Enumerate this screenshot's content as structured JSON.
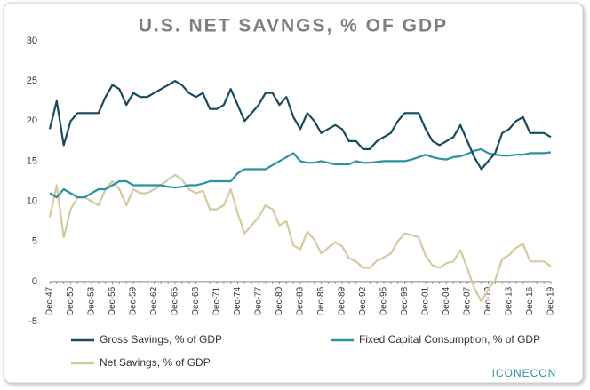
{
  "chart_data": {
    "type": "line",
    "title": "U.S. NET SAVNGS, % OF GDP",
    "categories": [
      "Dec-47",
      null,
      null,
      "Dec-50",
      null,
      null,
      "Dec-53",
      null,
      null,
      "Dec-56",
      null,
      null,
      "Dec-59",
      null,
      null,
      "Dec-62",
      null,
      null,
      "Dec-65",
      null,
      null,
      "Dec-68",
      null,
      null,
      "Dec-71",
      null,
      null,
      "Dec-74",
      null,
      null,
      "Dec-77",
      null,
      null,
      "Dec-80",
      null,
      null,
      "Dec-83",
      null,
      null,
      "Dec-86",
      null,
      null,
      "Dec-89",
      null,
      null,
      "Dec-92",
      null,
      null,
      "Dec-95",
      null,
      null,
      "Dec-98",
      null,
      null,
      "Dec-01",
      null,
      null,
      "Dec-04",
      null,
      null,
      "Dec-07",
      null,
      null,
      "Dec-10",
      null,
      null,
      "Dec-13",
      null,
      null,
      "Dec-16",
      null,
      null,
      "Dec-19"
    ],
    "series": [
      {
        "name": "Gross Savings, % of GDP",
        "color": "#174a5e",
        "values": [
          19,
          22.5,
          17,
          20,
          21,
          21,
          21,
          21,
          23,
          24.5,
          24,
          22,
          23.5,
          23,
          23,
          23.5,
          24,
          24.5,
          25,
          24.5,
          23.5,
          23,
          23.5,
          21.5,
          21.5,
          22,
          24,
          22,
          20,
          21,
          22,
          23.5,
          23.5,
          22,
          23,
          20.5,
          19,
          21,
          20,
          18.5,
          19,
          19.5,
          19,
          17.5,
          17.5,
          16.5,
          16.5,
          17.5,
          18,
          18.5,
          20,
          21,
          21,
          21,
          19,
          17.5,
          17,
          17.5,
          18,
          19.5,
          17.5,
          15.5,
          14,
          15,
          16,
          18.5,
          19,
          20,
          20.5,
          18.5,
          18.5,
          18.5,
          18
        ]
      },
      {
        "name": "Fixed Capital Consumption, % of GDP",
        "color": "#2a93a3",
        "values": [
          11,
          10.5,
          11.5,
          11,
          10.5,
          10.5,
          11,
          11.5,
          11.5,
          12,
          12.5,
          12.5,
          12,
          12,
          12,
          12,
          12,
          11.8,
          11.7,
          11.8,
          12,
          12,
          12.2,
          12.5,
          12.5,
          12.5,
          12.5,
          13.5,
          14,
          14,
          14,
          14,
          14.5,
          15,
          15.5,
          16,
          15,
          14.8,
          14.8,
          15,
          14.8,
          14.6,
          14.6,
          14.6,
          15,
          14.8,
          14.8,
          14.9,
          15,
          15,
          15,
          15,
          15.2,
          15.5,
          15.8,
          15.5,
          15.3,
          15.2,
          15.5,
          15.6,
          15.9,
          16.3,
          16.5,
          16,
          15.8,
          15.7,
          15.7,
          15.8,
          15.8,
          16,
          16,
          16,
          16.1
        ]
      },
      {
        "name": "Net Savings, % of GDP",
        "color": "#d6c99e",
        "values": [
          8,
          12,
          5.5,
          9,
          10.5,
          10.5,
          10,
          9.5,
          11.5,
          12.5,
          11.5,
          9.5,
          11.5,
          11,
          11,
          11.5,
          12,
          12.7,
          13.3,
          12.7,
          11.5,
          11,
          11.3,
          9,
          9,
          9.5,
          11.5,
          8.5,
          6,
          7,
          8,
          9.5,
          9,
          7,
          7.5,
          4.5,
          4,
          6.2,
          5.2,
          3.5,
          4.2,
          4.9,
          4.4,
          2.9,
          2.5,
          1.7,
          1.7,
          2.6,
          3,
          3.5,
          5,
          6,
          5.8,
          5.5,
          3.2,
          2,
          1.7,
          2.3,
          2.5,
          3.9,
          1.6,
          -0.8,
          -2.5,
          -1,
          0.2,
          2.8,
          3.3,
          4.2,
          4.7,
          2.5,
          2.5,
          2.5,
          1.9
        ]
      }
    ],
    "ylim": [
      -5,
      30
    ],
    "yticks": [
      -5,
      0,
      5,
      10,
      15,
      20,
      25,
      30
    ],
    "grid": false,
    "logo": "ICONECON"
  }
}
